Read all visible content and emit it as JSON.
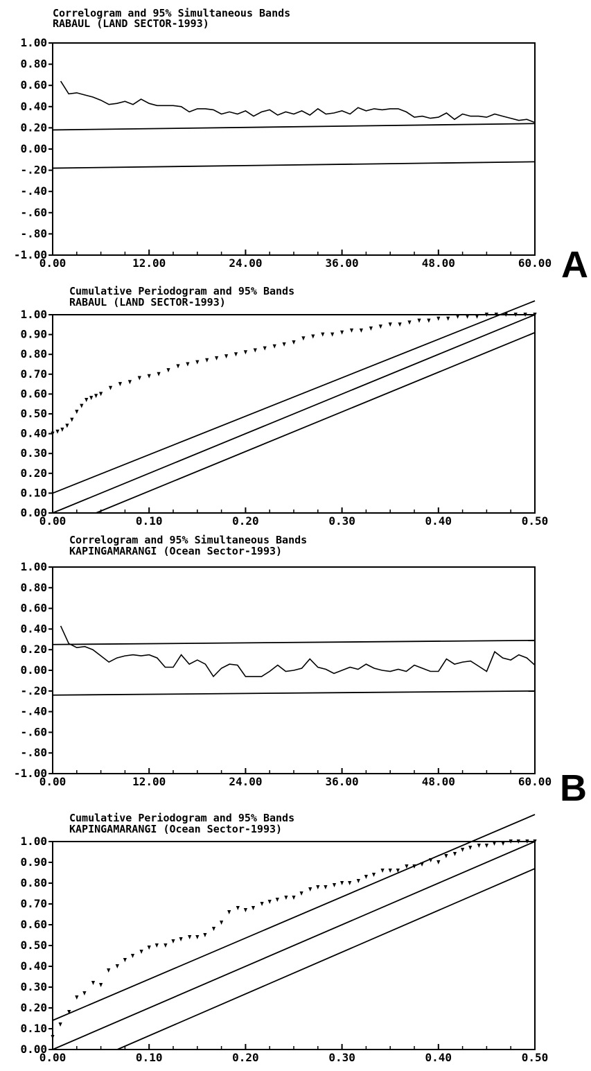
{
  "figure": {
    "panel_labels": [
      "A",
      "B"
    ]
  },
  "chart_data": [
    {
      "type": "line",
      "title": "Correlogram and 95% Simultaneous Bands",
      "subtitle": "RABAUL (LAND SECTOR-1993)",
      "xlim": [
        0,
        60
      ],
      "ylim": [
        -1,
        1
      ],
      "xticks": [
        0,
        12,
        24,
        36,
        48,
        60
      ],
      "xtick_labels": [
        "0.00",
        "12.00",
        "24.00",
        "36.00",
        "48.00",
        "60.00"
      ],
      "yticks": [
        1,
        0.8,
        0.6,
        0.4,
        0.2,
        0,
        -0.2,
        -0.4,
        -0.6,
        -0.8,
        -1
      ],
      "ytick_labels": [
        "1.00",
        "0.80",
        "0.60",
        "0.40",
        "0.20",
        "0.00",
        "-.20",
        "-.40",
        "-.60",
        "-.80",
        "-1.00"
      ],
      "minor_xticks": 20,
      "series": [
        {
          "style": "line",
          "x": [
            1,
            2,
            3,
            4,
            5,
            6,
            7,
            8,
            9,
            10,
            11,
            12,
            13,
            14,
            15,
            16,
            17,
            18,
            19,
            20,
            21,
            22,
            23,
            24,
            25,
            26,
            27,
            28,
            29,
            30,
            31,
            32,
            33,
            34,
            35,
            36,
            37,
            38,
            39,
            40,
            41,
            42,
            43,
            44,
            45,
            46,
            47,
            48,
            49,
            50,
            51,
            52,
            53,
            54,
            55,
            56,
            57,
            58,
            59,
            60
          ],
          "y": [
            0.64,
            0.52,
            0.53,
            0.51,
            0.49,
            0.46,
            0.42,
            0.43,
            0.45,
            0.42,
            0.47,
            0.43,
            0.41,
            0.41,
            0.41,
            0.4,
            0.35,
            0.38,
            0.38,
            0.37,
            0.33,
            0.35,
            0.33,
            0.36,
            0.31,
            0.35,
            0.37,
            0.32,
            0.35,
            0.33,
            0.36,
            0.32,
            0.38,
            0.33,
            0.34,
            0.36,
            0.33,
            0.39,
            0.36,
            0.38,
            0.37,
            0.38,
            0.38,
            0.35,
            0.3,
            0.31,
            0.29,
            0.3,
            0.34,
            0.28,
            0.33,
            0.31,
            0.31,
            0.3,
            0.33,
            0.31,
            0.29,
            0.27,
            0.28,
            0.25
          ]
        },
        {
          "style": "band",
          "x": [
            0,
            60
          ],
          "y": [
            0.18,
            0.24
          ]
        },
        {
          "style": "band",
          "x": [
            0,
            60
          ],
          "y": [
            -0.18,
            -0.12
          ]
        }
      ]
    },
    {
      "type": "line",
      "title": "Cumulative Periodogram and 95% Bands",
      "subtitle": "RABAUL (LAND SECTOR-1993)",
      "xlim": [
        0,
        0.5
      ],
      "ylim": [
        0,
        1
      ],
      "xticks": [
        0,
        0.1,
        0.2,
        0.3,
        0.4,
        0.5
      ],
      "xtick_labels": [
        "0.00",
        "0.10",
        "0.20",
        "0.30",
        "0.40",
        "0.50"
      ],
      "yticks": [
        1,
        0.9,
        0.8,
        0.7,
        0.6,
        0.5,
        0.4,
        0.3,
        0.2,
        0.1,
        0
      ],
      "ytick_labels": [
        "1.00",
        "0.90",
        "0.80",
        "0.70",
        "0.60",
        "0.50",
        "0.40",
        "0.30",
        "0.20",
        "0.10",
        "0.00"
      ],
      "minor_xticks": 20,
      "series": [
        {
          "style": "markers",
          "x": [
            0.0,
            0.005,
            0.01,
            0.015,
            0.02,
            0.025,
            0.03,
            0.035,
            0.04,
            0.045,
            0.05,
            0.06,
            0.07,
            0.08,
            0.09,
            0.1,
            0.11,
            0.12,
            0.13,
            0.14,
            0.15,
            0.16,
            0.17,
            0.18,
            0.19,
            0.2,
            0.21,
            0.22,
            0.23,
            0.24,
            0.25,
            0.26,
            0.27,
            0.28,
            0.29,
            0.3,
            0.31,
            0.32,
            0.33,
            0.34,
            0.35,
            0.36,
            0.37,
            0.38,
            0.39,
            0.4,
            0.41,
            0.42,
            0.43,
            0.44,
            0.45,
            0.46,
            0.47,
            0.48,
            0.49,
            0.5
          ],
          "y": [
            0.4,
            0.41,
            0.42,
            0.44,
            0.47,
            0.51,
            0.54,
            0.57,
            0.58,
            0.59,
            0.6,
            0.63,
            0.65,
            0.66,
            0.68,
            0.69,
            0.7,
            0.72,
            0.74,
            0.75,
            0.76,
            0.77,
            0.78,
            0.79,
            0.8,
            0.81,
            0.82,
            0.83,
            0.84,
            0.85,
            0.86,
            0.88,
            0.89,
            0.9,
            0.9,
            0.91,
            0.92,
            0.92,
            0.93,
            0.94,
            0.95,
            0.95,
            0.96,
            0.97,
            0.97,
            0.98,
            0.98,
            0.99,
            0.99,
            0.99,
            1.0,
            1.0,
            1.0,
            1.0,
            1.0,
            1.0
          ]
        },
        {
          "style": "band",
          "x": [
            0,
            0.5
          ],
          "y": [
            0.1,
            1.07
          ]
        },
        {
          "style": "band",
          "x": [
            0,
            0.5
          ],
          "y": [
            0.0,
            1.0
          ]
        },
        {
          "style": "band",
          "x": [
            0.045,
            0.5
          ],
          "y": [
            0.0,
            0.91
          ]
        }
      ]
    },
    {
      "type": "line",
      "title": "Correlogram and 95% Simultaneous Bands",
      "subtitle": "KAPINGAMARANGI (Ocean Sector-1993)",
      "xlim": [
        0,
        60
      ],
      "ylim": [
        -1,
        1
      ],
      "xticks": [
        0,
        12,
        24,
        36,
        48,
        60
      ],
      "xtick_labels": [
        "0.00",
        "12.00",
        "24.00",
        "36.00",
        "48.00",
        "60.00"
      ],
      "yticks": [
        1,
        0.8,
        0.6,
        0.4,
        0.2,
        0,
        -0.2,
        -0.4,
        -0.6,
        -0.8,
        -1
      ],
      "ytick_labels": [
        "1.00",
        "0.80",
        "0.60",
        "0.40",
        "0.20",
        "0.00",
        "-.20",
        "-.40",
        "-.60",
        "-.80",
        "-1.00"
      ],
      "minor_xticks": 20,
      "series": [
        {
          "style": "line",
          "x": [
            1,
            2,
            3,
            4,
            5,
            6,
            7,
            8,
            9,
            10,
            11,
            12,
            13,
            14,
            15,
            16,
            17,
            18,
            19,
            20,
            21,
            22,
            23,
            24,
            25,
            26,
            27,
            28,
            29,
            30,
            31,
            32,
            33,
            34,
            35,
            36,
            37,
            38,
            39,
            40,
            41,
            42,
            43,
            44,
            45,
            46,
            47,
            48,
            49,
            50,
            51,
            52,
            53,
            54,
            55,
            56,
            57,
            58,
            59,
            60
          ],
          "y": [
            0.43,
            0.26,
            0.22,
            0.23,
            0.2,
            0.14,
            0.08,
            0.12,
            0.14,
            0.15,
            0.14,
            0.15,
            0.12,
            0.03,
            0.03,
            0.15,
            0.06,
            0.1,
            0.06,
            -0.06,
            0.02,
            0.06,
            0.05,
            -0.06,
            -0.06,
            -0.06,
            -0.01,
            0.05,
            -0.01,
            0.0,
            0.02,
            0.11,
            0.03,
            0.01,
            -0.03,
            0.0,
            0.03,
            0.01,
            0.06,
            0.02,
            0.0,
            -0.01,
            0.01,
            -0.01,
            0.05,
            0.02,
            -0.01,
            -0.01,
            0.11,
            0.06,
            0.08,
            0.09,
            0.04,
            -0.01,
            0.18,
            0.12,
            0.1,
            0.15,
            0.12,
            0.05
          ]
        },
        {
          "style": "band",
          "x": [
            0,
            60
          ],
          "y": [
            0.25,
            0.29
          ]
        },
        {
          "style": "band",
          "x": [
            0,
            60
          ],
          "y": [
            -0.24,
            -0.2
          ]
        }
      ]
    },
    {
      "type": "line",
      "title": "Cumulative Periodogram and 95% Bands",
      "subtitle": "KAPINGAMARANGI (Ocean Sector-1993)",
      "xlim": [
        0,
        0.5
      ],
      "ylim": [
        0,
        1
      ],
      "xticks": [
        0,
        0.1,
        0.2,
        0.3,
        0.4,
        0.5
      ],
      "xtick_labels": [
        "0.00",
        "0.10",
        "0.20",
        "0.30",
        "0.40",
        "0.50"
      ],
      "yticks": [
        1,
        0.9,
        0.8,
        0.7,
        0.6,
        0.5,
        0.4,
        0.3,
        0.2,
        0.1,
        0
      ],
      "ytick_labels": [
        "1.00",
        "0.90",
        "0.80",
        "0.70",
        "0.60",
        "0.50",
        "0.40",
        "0.30",
        "0.20",
        "0.10",
        "0.00"
      ],
      "minor_xticks": 20,
      "series": [
        {
          "style": "markers",
          "x": [
            0.0,
            0.008,
            0.017,
            0.025,
            0.033,
            0.042,
            0.05,
            0.058,
            0.067,
            0.075,
            0.083,
            0.092,
            0.1,
            0.108,
            0.117,
            0.125,
            0.133,
            0.142,
            0.15,
            0.158,
            0.167,
            0.175,
            0.183,
            0.192,
            0.2,
            0.208,
            0.217,
            0.225,
            0.233,
            0.242,
            0.25,
            0.258,
            0.267,
            0.275,
            0.283,
            0.292,
            0.3,
            0.308,
            0.317,
            0.325,
            0.333,
            0.342,
            0.35,
            0.358,
            0.367,
            0.375,
            0.383,
            0.392,
            0.4,
            0.408,
            0.417,
            0.425,
            0.433,
            0.442,
            0.45,
            0.458,
            0.467,
            0.475,
            0.483,
            0.492,
            0.5
          ],
          "y": [
            0.06,
            0.12,
            0.18,
            0.25,
            0.27,
            0.32,
            0.31,
            0.38,
            0.4,
            0.43,
            0.45,
            0.47,
            0.49,
            0.5,
            0.5,
            0.52,
            0.53,
            0.54,
            0.54,
            0.55,
            0.58,
            0.61,
            0.66,
            0.68,
            0.67,
            0.68,
            0.7,
            0.71,
            0.72,
            0.73,
            0.73,
            0.75,
            0.77,
            0.78,
            0.78,
            0.79,
            0.8,
            0.8,
            0.81,
            0.83,
            0.84,
            0.86,
            0.86,
            0.86,
            0.88,
            0.88,
            0.89,
            0.91,
            0.9,
            0.93,
            0.94,
            0.96,
            0.97,
            0.98,
            0.98,
            0.99,
            0.99,
            1.0,
            1.0,
            1.0,
            1.0
          ]
        },
        {
          "style": "band",
          "x": [
            0,
            0.5
          ],
          "y": [
            0.14,
            1.13
          ]
        },
        {
          "style": "band",
          "x": [
            0,
            0.5
          ],
          "y": [
            0.0,
            1.0
          ]
        },
        {
          "style": "band",
          "x": [
            0.067,
            0.5
          ],
          "y": [
            0.0,
            0.87
          ]
        }
      ]
    }
  ]
}
